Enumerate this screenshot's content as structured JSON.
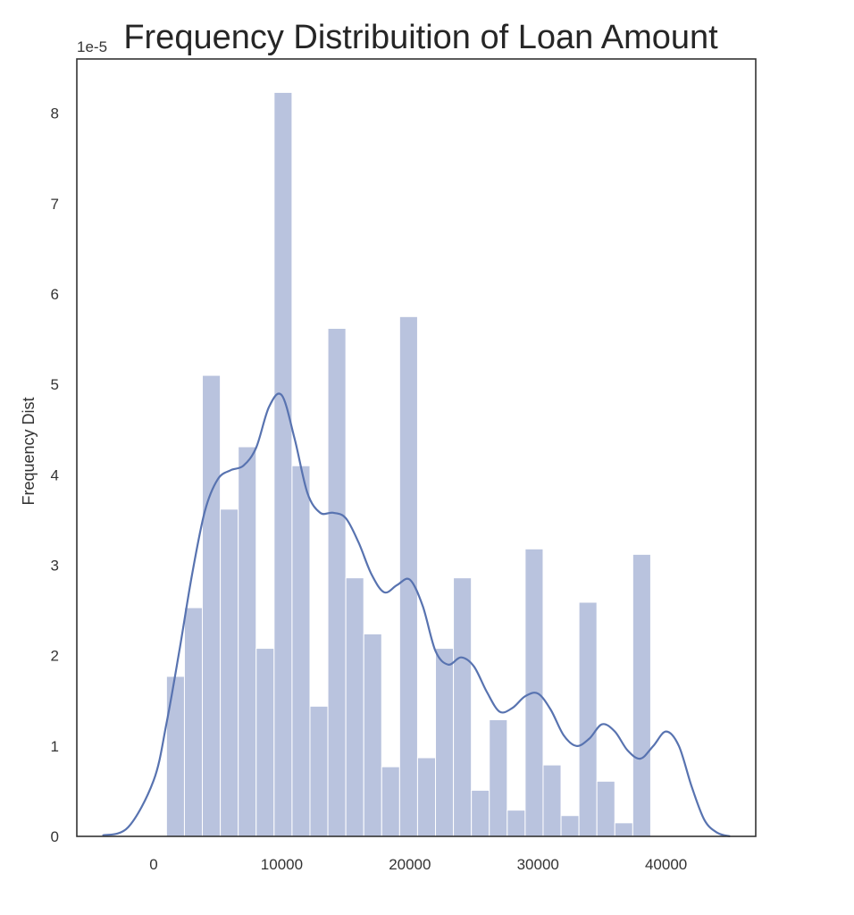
{
  "chart_data": {
    "type": "bar",
    "title": "Frequency Distribuition of Loan Amount",
    "xlabel": "",
    "ylabel": "Frequency Dist",
    "y_offset_label": "1e-5",
    "xlim": [
      -6000,
      47000
    ],
    "ylim": [
      0,
      8.6
    ],
    "x_ticks": [
      0,
      10000,
      20000,
      30000,
      40000
    ],
    "y_ticks": [
      0,
      1,
      2,
      3,
      4,
      5,
      6,
      7,
      8
    ],
    "grid": false,
    "bin_edges": [
      1000,
      2400,
      3800,
      5200,
      6600,
      8000,
      9400,
      10800,
      12200,
      13600,
      15000,
      16400,
      17800,
      19200,
      20600,
      22000,
      23400,
      24800,
      26200,
      27600,
      29000,
      30400,
      31800,
      33200,
      34600,
      36000,
      37400,
      38800,
      40200
    ],
    "values": [
      1.77,
      2.53,
      5.1,
      3.62,
      4.31,
      2.08,
      8.23,
      4.1,
      1.44,
      5.62,
      2.86,
      2.24,
      0.77,
      5.75,
      0.87,
      2.08,
      2.86,
      0.51,
      1.29,
      0.29,
      3.18,
      0.79,
      0.23,
      2.59,
      0.61,
      0.15,
      3.12,
      0.0
    ],
    "bar_color": "#b9c3de",
    "kde": {
      "color": "#5873b0",
      "x": [
        -4000,
        -2000,
        0,
        1000,
        2000,
        3000,
        4000,
        5000,
        6000,
        7000,
        8000,
        9000,
        10000,
        11000,
        12000,
        13000,
        14000,
        15000,
        16000,
        17000,
        18000,
        19000,
        20000,
        21000,
        22000,
        23000,
        24000,
        25000,
        26000,
        27000,
        28000,
        29000,
        30000,
        31000,
        32000,
        33000,
        34000,
        35000,
        36000,
        37000,
        38000,
        39000,
        40000,
        41000,
        42000,
        43000,
        44000,
        45000
      ],
      "y": [
        0.01,
        0.1,
        0.62,
        1.25,
        2.05,
        2.9,
        3.6,
        3.95,
        4.05,
        4.1,
        4.3,
        4.75,
        4.88,
        4.4,
        3.8,
        3.58,
        3.58,
        3.52,
        3.25,
        2.9,
        2.7,
        2.78,
        2.84,
        2.55,
        2.05,
        1.9,
        1.98,
        1.88,
        1.6,
        1.38,
        1.42,
        1.55,
        1.58,
        1.4,
        1.12,
        1.0,
        1.08,
        1.24,
        1.16,
        0.95,
        0.86,
        1.0,
        1.16,
        1.0,
        0.55,
        0.18,
        0.04,
        0.0
      ]
    }
  }
}
